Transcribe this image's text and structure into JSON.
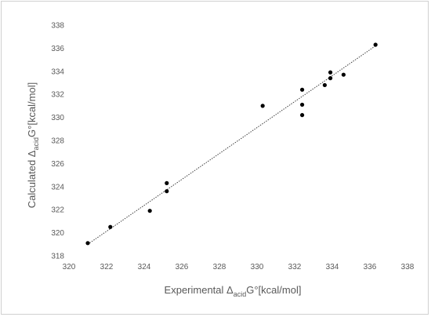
{
  "chart_data": {
    "type": "scatter",
    "xlabel": {
      "prefix": "Experimental ",
      "delta": "Δ",
      "sub": "acid",
      "suffix": "G°[kcal/mol]"
    },
    "ylabel": {
      "prefix": "Calculated  ",
      "delta": "Δ",
      "sub": "acid",
      "suffix": "G°[kcal/mol]"
    },
    "xlim": [
      320,
      338
    ],
    "ylim": [
      318,
      338
    ],
    "xticks": [
      320,
      322,
      324,
      326,
      328,
      330,
      332,
      334,
      336,
      338
    ],
    "yticks": [
      318,
      320,
      322,
      324,
      326,
      328,
      330,
      332,
      334,
      336,
      338
    ],
    "grid": false,
    "legend": "none",
    "marker_color": "#000000",
    "trendline": {
      "style": "dotted",
      "color": "#404040",
      "from": [
        321.0,
        319.0
      ],
      "to": [
        336.3,
        336.2
      ]
    },
    "points": [
      {
        "x": 321.0,
        "y": 319.1
      },
      {
        "x": 322.2,
        "y": 320.5
      },
      {
        "x": 324.3,
        "y": 321.9
      },
      {
        "x": 325.2,
        "y": 323.6
      },
      {
        "x": 325.2,
        "y": 324.3
      },
      {
        "x": 330.3,
        "y": 331.0
      },
      {
        "x": 332.4,
        "y": 330.2
      },
      {
        "x": 332.4,
        "y": 331.1
      },
      {
        "x": 332.4,
        "y": 332.4
      },
      {
        "x": 333.6,
        "y": 332.8
      },
      {
        "x": 333.9,
        "y": 333.4
      },
      {
        "x": 333.9,
        "y": 333.9
      },
      {
        "x": 334.6,
        "y": 333.7
      },
      {
        "x": 336.3,
        "y": 336.3
      }
    ]
  }
}
